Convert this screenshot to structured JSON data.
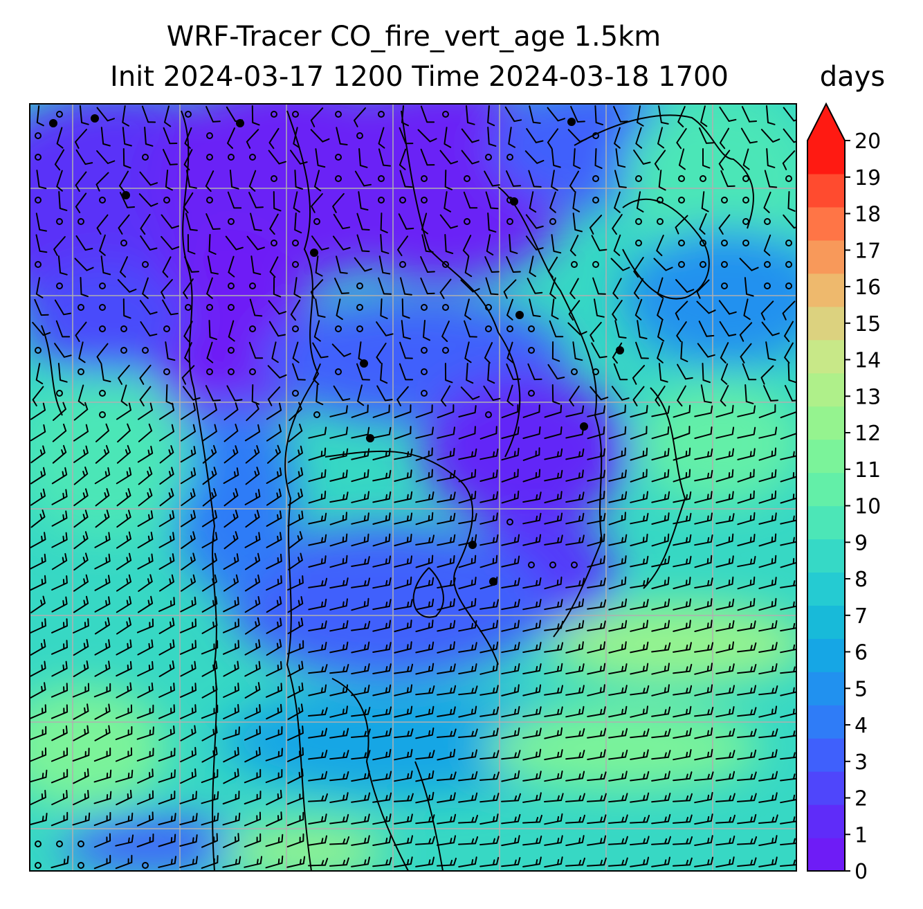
{
  "title": {
    "line1": "WRF-Tracer CO_fire_vert_age 1.5km",
    "line2": "Init 2024-03-17 1200 Time 2024-03-18 1700"
  },
  "colorbar": {
    "unit_label": "days",
    "ticks": [
      "0",
      "1",
      "2",
      "3",
      "4",
      "5",
      "6",
      "7",
      "8",
      "9",
      "10",
      "11",
      "12",
      "13",
      "14",
      "15",
      "16",
      "17",
      "18",
      "19",
      "20"
    ],
    "extend": "max",
    "colors": [
      "#6e1cf6",
      "#5f2cf9",
      "#4f46fb",
      "#3f60fc",
      "#2f7cf7",
      "#2191ef",
      "#16a6e5",
      "#18bad9",
      "#25cbd2",
      "#36d9c6",
      "#4ce6b7",
      "#63efa8",
      "#7bf39a",
      "#95f38f",
      "#aff08a",
      "#c8e888",
      "#dcd27f",
      "#eeb96d",
      "#f8995a",
      "#ff7546",
      "#ff4b2f",
      "#ff1a12"
    ],
    "extend_color": "#ff1a12"
  },
  "map": {
    "field": "CO_fire_vert_age",
    "level": "1.5km",
    "gridlines": true,
    "features": [
      "coastlines",
      "country-borders",
      "wind-barbs"
    ]
  }
}
